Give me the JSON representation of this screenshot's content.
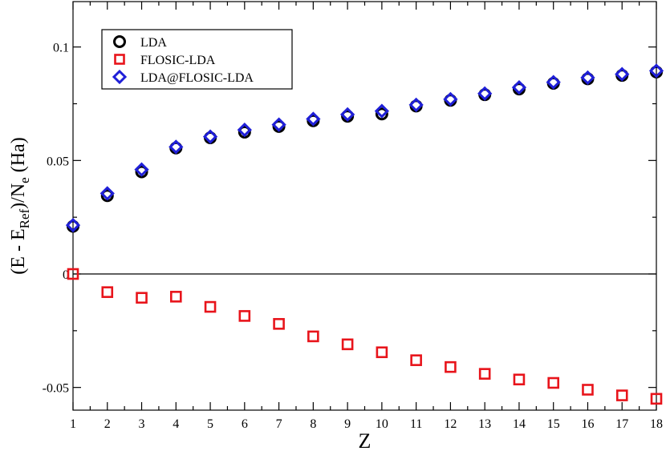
{
  "chart_data": {
    "type": "scatter",
    "xlabel": "Z",
    "ylabel": {
      "prefix": "(E - E",
      "sub1": "Ref",
      "mid": ")/N",
      "sub2": "e",
      "suffix": " (Ha)"
    },
    "xlim": [
      1,
      18
    ],
    "ylim": [
      -0.06,
      0.12
    ],
    "x_ticks": [
      1,
      2,
      3,
      4,
      5,
      6,
      7,
      8,
      9,
      10,
      11,
      12,
      13,
      14,
      15,
      16,
      17,
      18
    ],
    "y_ticks": [
      {
        "value": -0.05,
        "label": "-0.05"
      },
      {
        "value": 0,
        "label": "0"
      },
      {
        "value": 0.05,
        "label": "0.05"
      },
      {
        "value": 0.1,
        "label": "0.1"
      }
    ],
    "zero_line": true,
    "legend_position": "top-left",
    "series": [
      {
        "name": "LDA",
        "marker": "circle",
        "color": "#000000",
        "x": [
          1,
          2,
          3,
          4,
          5,
          6,
          7,
          8,
          9,
          10,
          11,
          12,
          13,
          14,
          15,
          16,
          17,
          18
        ],
        "y": [
          0.021,
          0.0345,
          0.045,
          0.0555,
          0.06,
          0.0625,
          0.065,
          0.0675,
          0.0695,
          0.0705,
          0.074,
          0.0765,
          0.079,
          0.0815,
          0.084,
          0.086,
          0.0875,
          0.089
        ]
      },
      {
        "name": "FLOSIC-LDA",
        "marker": "square",
        "color": "#e8141b",
        "x": [
          1,
          2,
          3,
          4,
          5,
          6,
          7,
          8,
          9,
          10,
          11,
          12,
          13,
          14,
          15,
          16,
          17,
          18
        ],
        "y": [
          0.0,
          -0.008,
          -0.0105,
          -0.01,
          -0.0145,
          -0.0185,
          -0.022,
          -0.0275,
          -0.031,
          -0.0345,
          -0.038,
          -0.041,
          -0.044,
          -0.0465,
          -0.048,
          -0.051,
          -0.0535,
          -0.055
        ]
      },
      {
        "name": "LDA@FLOSIC-LDA",
        "marker": "diamond",
        "color": "#1f1fd8",
        "x": [
          1,
          2,
          3,
          4,
          5,
          6,
          7,
          8,
          9,
          10,
          11,
          12,
          13,
          14,
          15,
          16,
          17,
          18
        ],
        "y": [
          0.0215,
          0.0355,
          0.046,
          0.056,
          0.0605,
          0.0635,
          0.0658,
          0.0683,
          0.0703,
          0.0718,
          0.0745,
          0.077,
          0.0795,
          0.0822,
          0.0845,
          0.0865,
          0.088,
          0.0895
        ]
      }
    ]
  }
}
